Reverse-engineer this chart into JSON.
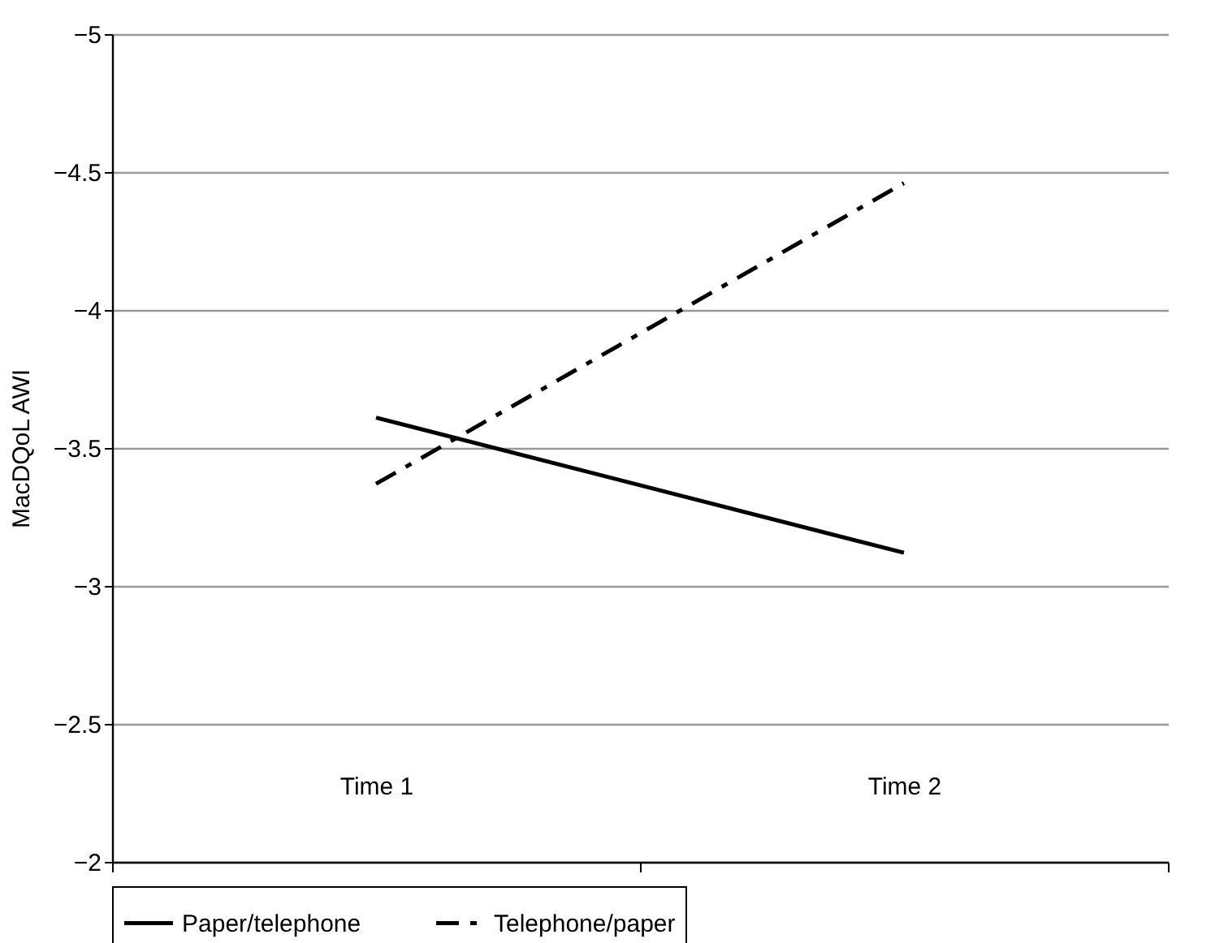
{
  "chart_data": {
    "type": "line",
    "ylabel": "MacDQoL AWI",
    "categories": [
      "Time 1",
      "Time 2"
    ],
    "series": [
      {
        "name": "Paper/telephone",
        "color": "#000000",
        "line_style": "solid",
        "values": [
          -3.61,
          -3.12
        ]
      },
      {
        "name": "Telephone/paper",
        "color": "#000000",
        "line_style": "dashed",
        "values": [
          -3.37,
          -4.46
        ]
      }
    ],
    "ylim": [
      -2,
      -5
    ],
    "yticks": [
      {
        "value": -2,
        "label": "−2"
      },
      {
        "value": -2.5,
        "label": "−2.5"
      },
      {
        "value": -3,
        "label": "−3"
      },
      {
        "value": -3.5,
        "label": "−3.5"
      },
      {
        "value": -4,
        "label": "−4"
      },
      {
        "value": -4.5,
        "label": "−4.5"
      },
      {
        "value": -5,
        "label": "−5"
      }
    ],
    "grid": "y",
    "legend": "bottom",
    "marker": "none"
  }
}
